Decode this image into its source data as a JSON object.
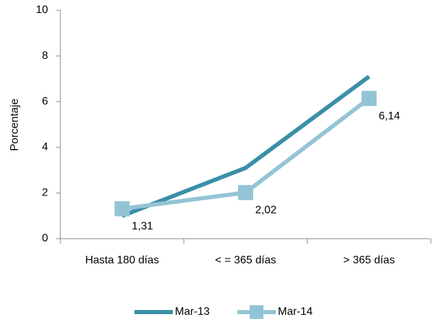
{
  "chart_data": {
    "type": "line",
    "y_label": "Porcentaje",
    "categories": [
      "Hasta 180 días",
      "< = 365 días",
      "> 365 días"
    ],
    "series": [
      {
        "name": "Mar-13",
        "color": "#3a8fa6",
        "values": [
          1.0,
          3.1,
          7.1
        ]
      },
      {
        "name": "Mar-14",
        "color": "#93c4d5",
        "values": [
          1.31,
          2.02,
          6.14
        ],
        "value_labels": [
          "1,31",
          "2,02",
          "6,14"
        ],
        "marker": "square"
      }
    ],
    "ylim": [
      0,
      10
    ],
    "yticks": [
      0,
      2,
      4,
      6,
      8,
      10
    ],
    "grid": false,
    "legend": "bottom"
  }
}
